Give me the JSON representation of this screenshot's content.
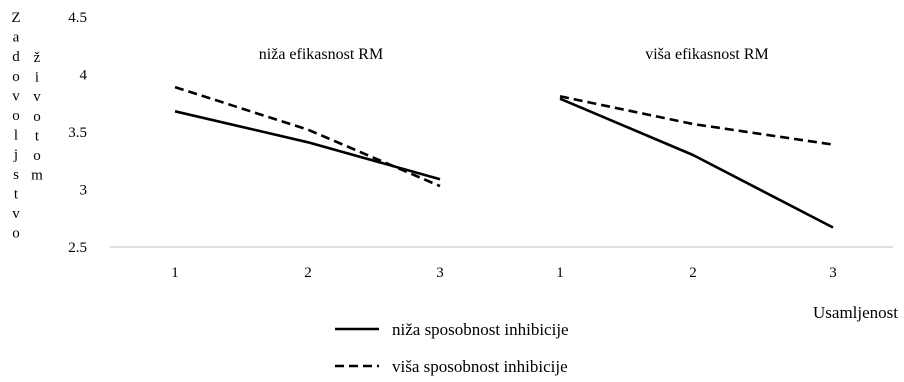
{
  "chart_data": {
    "type": "line",
    "ylabel_lines": [
      "Zadovoljstvo",
      "životom"
    ],
    "xlabel": "Usamljenost",
    "ylim": [
      2.5,
      4.5
    ],
    "yticks": [
      "4.5",
      "4",
      "3.5",
      "3",
      "2.5"
    ],
    "grid": false,
    "legend_position": "bottom-center",
    "panels": [
      {
        "title": "niža efikasnost RM",
        "x": [
          "1",
          "2",
          "3"
        ],
        "series": [
          {
            "name": "niža sposobnost inhibicije",
            "style": "solid",
            "values": [
              3.68,
              3.41,
              3.09
            ]
          },
          {
            "name": "viša sposobnost inhibicije",
            "style": "dashed",
            "values": [
              3.89,
              3.52,
              3.03
            ]
          }
        ]
      },
      {
        "title": "viša efikasnost RM",
        "x": [
          "1",
          "2",
          "3"
        ],
        "series": [
          {
            "name": "niža sposobnost inhibicije",
            "style": "solid",
            "values": [
              3.79,
              3.3,
              2.67
            ]
          },
          {
            "name": "viša sposobnost inhibicije",
            "style": "dashed",
            "values": [
              3.81,
              3.57,
              3.39
            ]
          }
        ]
      }
    ],
    "legend": [
      {
        "label": "niža sposobnost inhibicije",
        "style": "solid"
      },
      {
        "label": "viša sposobnost inhibicije",
        "style": "dashed"
      }
    ],
    "colors": {
      "line": "#000000",
      "axis": "#bfbfbf",
      "text": "#222222"
    }
  }
}
